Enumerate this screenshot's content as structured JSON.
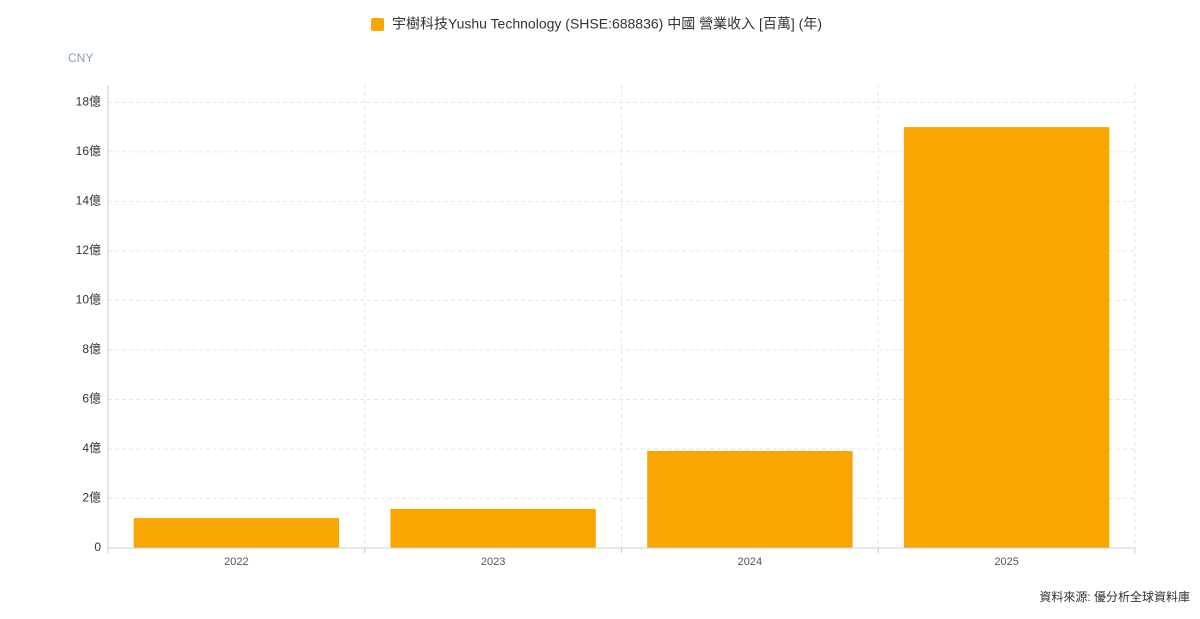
{
  "chart_data": {
    "type": "bar",
    "series": [
      {
        "name": "宇樹科技Yushu Technology (SHSE:688836) 中國 營業收入 [百萬] (年)",
        "color": "#f9a602",
        "values": [
          1.21,
          1.58,
          3.92,
          17.0
        ]
      }
    ],
    "categories": [
      "2022",
      "2023",
      "2024",
      "2025"
    ],
    "y_axis_label": "CNY",
    "ylim": [
      0,
      18.7
    ],
    "yticks": [
      0,
      {
        "value": 2,
        "label": "2億"
      },
      {
        "value": 4,
        "label": "4億"
      },
      {
        "value": 6,
        "label": "6億"
      },
      {
        "value": 8,
        "label": "8億"
      },
      {
        "value": 10,
        "label": "10億"
      },
      {
        "value": 12,
        "label": "12億"
      },
      {
        "value": 14,
        "label": "14億"
      },
      {
        "value": 16,
        "label": "16億"
      },
      {
        "value": 18,
        "label": "18億"
      }
    ],
    "grid": true,
    "source": "資料來源: 優分析全球資料庫"
  }
}
